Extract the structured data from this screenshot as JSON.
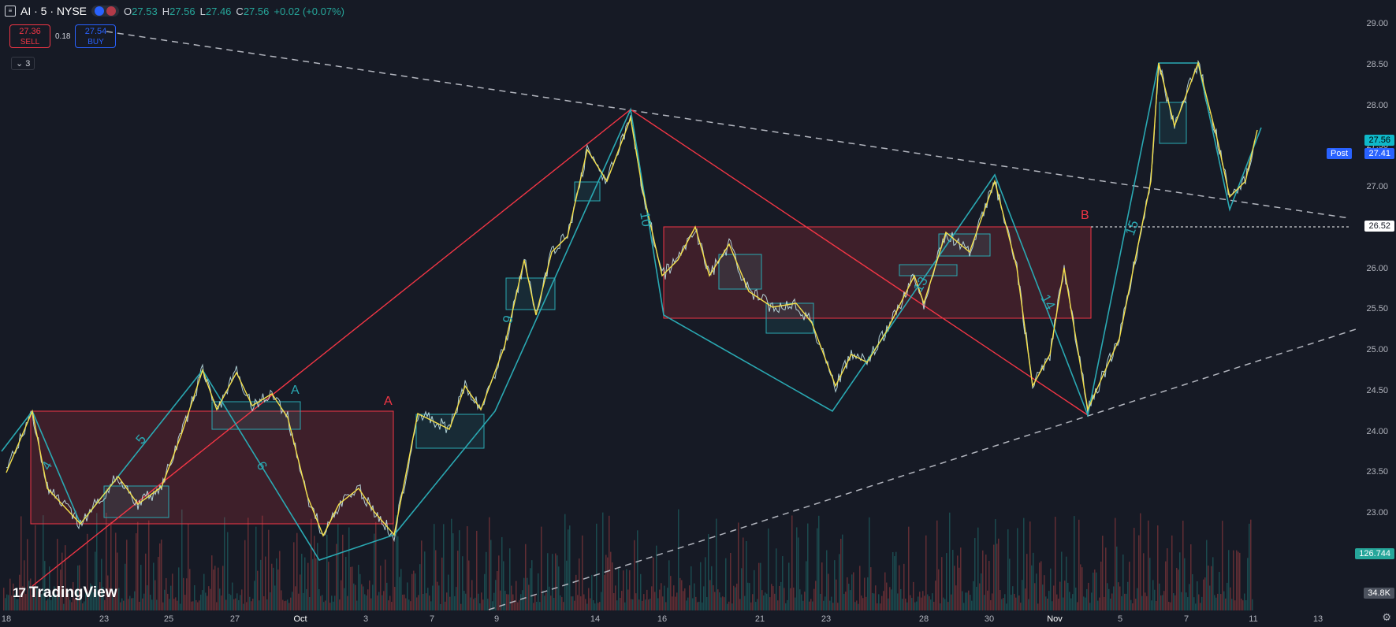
{
  "header": {
    "symbol": "AI · 5 · NYSE",
    "open_label": "O",
    "open": "27.53",
    "high_label": "H",
    "high": "27.56",
    "low_label": "L",
    "low": "27.46",
    "close_label": "C",
    "close": "27.56",
    "change": "+0.02 (+0.07%)"
  },
  "trade": {
    "sell_price": "27.36",
    "sell_label": "SELL",
    "spread": "0.18",
    "buy_price": "27.54",
    "buy_label": "BUY"
  },
  "indicator_toggle": "3",
  "brand": "TradingView",
  "price_scale": {
    "ticks": [
      "29.00",
      "28.50",
      "28.00",
      "27.50",
      "27.00",
      "26.50",
      "26.00",
      "25.50",
      "25.00",
      "24.50",
      "24.00",
      "23.50",
      "23.00"
    ],
    "last_price": "27.56",
    "post_label": "Post",
    "post_price": "27.41",
    "horizontal_line_price": "26.52",
    "volume_label": "126.744",
    "volume_avg": "34.8K"
  },
  "time_axis": [
    "18",
    "23",
    "25",
    "27",
    "Oct",
    "3",
    "7",
    "9",
    "14",
    "16",
    "21",
    "23",
    "28",
    "30",
    "Nov",
    "5",
    "7",
    "11",
    "13"
  ],
  "annotations": {
    "zone_a_label": "A",
    "zone_a_label2": "A",
    "zone_b_label": "B",
    "wave_labels": [
      "4",
      "5",
      "6",
      "9",
      "10",
      "13",
      "14",
      "15"
    ]
  },
  "colors": {
    "background": "#161a25",
    "up": "#26a69a",
    "down": "#ef5350",
    "zigzag_cyan": "#2aa9b3",
    "zigzag_yellow": "#f5e04b",
    "zone_red": "#f23645",
    "price_blue": "#2962ff",
    "last_price_teal": "#0fb8c9"
  },
  "chart_data": {
    "type": "line",
    "title": "",
    "ylim": [
      22.3,
      29.3
    ],
    "x": [
      "18",
      "23",
      "25",
      "27",
      "Oct",
      "3",
      "7",
      "9",
      "14",
      "16",
      "21",
      "23",
      "28",
      "30",
      "Nov",
      "5",
      "7",
      "11"
    ],
    "series": [
      {
        "values": [
          23.6,
          23.0,
          23.3,
          24.5,
          23.6,
          22.8,
          24.0,
          25.5,
          27.3,
          25.6,
          25.4,
          24.4,
          25.9,
          27.0,
          24.6,
          26.5,
          28.4,
          27.4
        ]
      }
    ],
    "zones": [
      {
        "label": "A",
        "from": 22.9,
        "to": 24.25
      },
      {
        "label": "B",
        "from": 25.4,
        "to": 26.52
      }
    ],
    "grid": false
  }
}
